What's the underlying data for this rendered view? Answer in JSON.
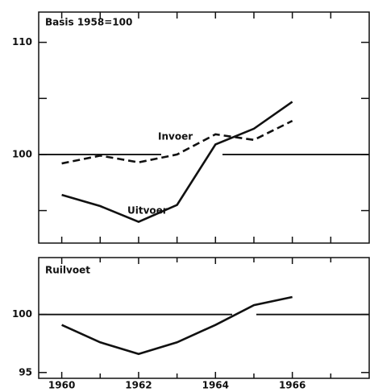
{
  "chart_data": [
    {
      "type": "line",
      "subtitle": "Basis 1958=100",
      "x": [
        1960,
        1961,
        1962,
        1963,
        1964,
        1965,
        1966
      ],
      "series": [
        {
          "name": "Uitvoer",
          "color": "#111111",
          "dash": false,
          "values": [
            96.4,
            95.4,
            94.0,
            95.5,
            100.9,
            102.3,
            104.7
          ]
        },
        {
          "name": "Invoer",
          "color": "#111111",
          "dash": true,
          "values": [
            99.2,
            99.9,
            99.3,
            100.0,
            101.8,
            101.3,
            103.0
          ]
        }
      ],
      "xlim": [
        1959.4,
        1968
      ],
      "xtick_marks": [
        1960,
        1961,
        1962,
        1963,
        1964,
        1965,
        1966,
        1967
      ],
      "ylim": [
        92.1,
        112.7
      ],
      "yticks": [
        100,
        110
      ],
      "minor_yticks": [
        95,
        105
      ],
      "reference": 100
    },
    {
      "type": "line",
      "title": "Ruilvoet",
      "x": [
        1960,
        1961,
        1962,
        1963,
        1964,
        1965,
        1966
      ],
      "series": [
        {
          "color": "#111111",
          "dash": false,
          "values": [
            99.1,
            97.6,
            96.6,
            97.6,
            99.1,
            100.8,
            101.5
          ]
        }
      ],
      "xlim": [
        1959.4,
        1968
      ],
      "xticks": [
        1960,
        1962,
        1964,
        1966
      ],
      "minor_xticks": [
        1961,
        1963,
        1965,
        1967
      ],
      "ylim": [
        94.5,
        104.9
      ],
      "yticks": [
        95,
        100
      ],
      "reference": 100
    }
  ]
}
